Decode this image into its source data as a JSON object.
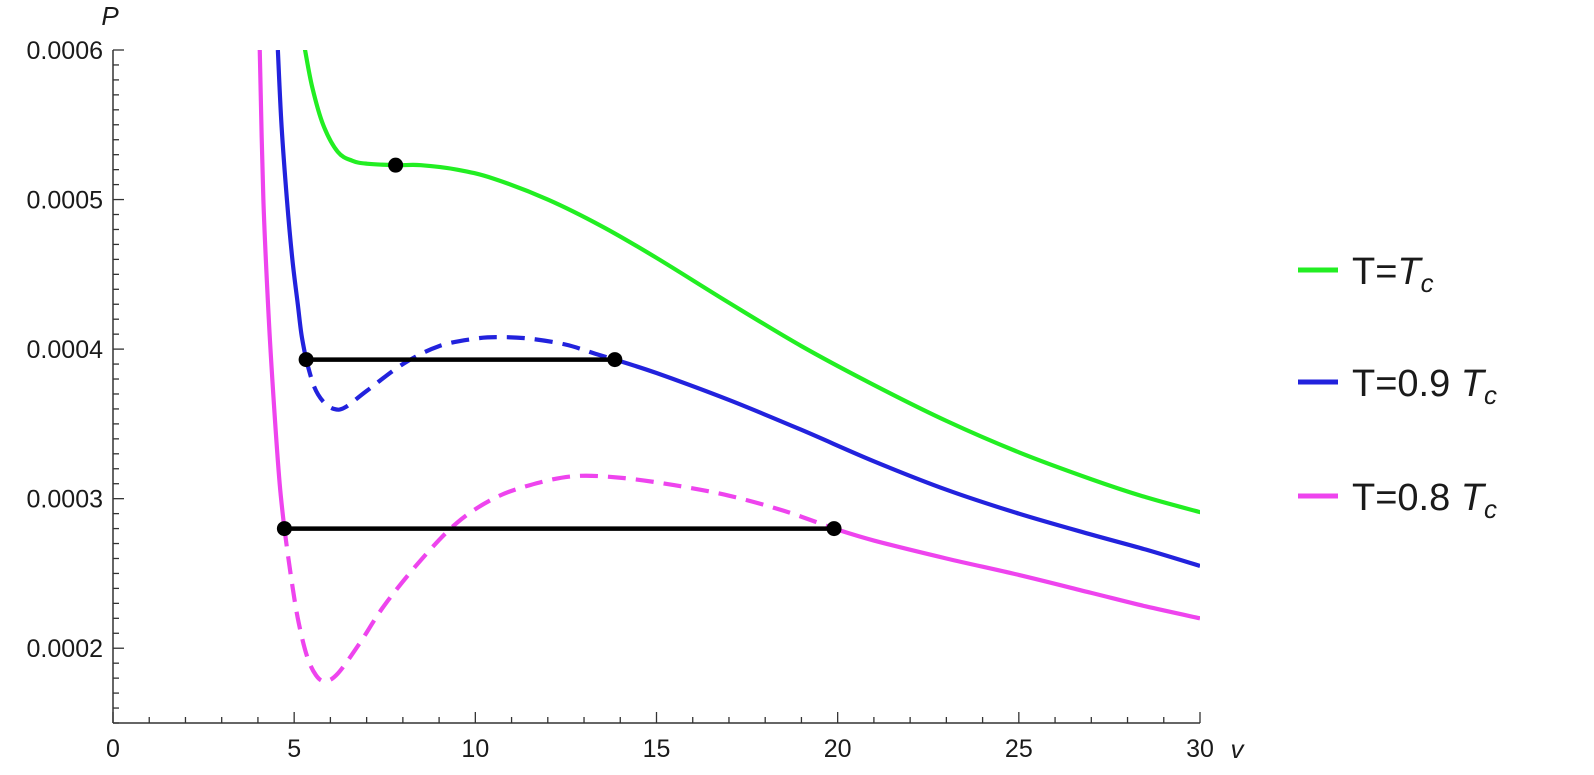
{
  "chart_data": {
    "type": "line",
    "xlabel": "v",
    "ylabel": "P",
    "xlim": [
      0,
      30
    ],
    "ylim": [
      0.00015,
      0.0006
    ],
    "x_ticks": [
      0,
      5,
      10,
      15,
      20,
      25,
      30
    ],
    "x_tick_labels": [
      "0",
      "5",
      "10",
      "15",
      "20",
      "25",
      "30"
    ],
    "y_ticks": [
      0.0002,
      0.0003,
      0.0004,
      0.0005,
      0.0006
    ],
    "y_tick_labels": [
      "0.0002",
      "0.0003",
      "0.0004",
      "0.0005",
      "0.0006"
    ],
    "grid": false,
    "legend_placement": "right",
    "series": [
      {
        "name_main": "T=",
        "name_sub": "T",
        "name_subsub": "c",
        "color": "#22ee22",
        "points": [
          [
            5.3,
            0.0006
          ],
          [
            5.5,
            0.000575
          ],
          [
            5.8,
            0.00055
          ],
          [
            6.2,
            0.000532
          ],
          [
            6.6,
            0.000526
          ],
          [
            7.0,
            0.000524
          ],
          [
            7.8,
            0.000523
          ],
          [
            8.5,
            0.000523
          ],
          [
            9.5,
            0.00052
          ],
          [
            10.5,
            0.000514
          ],
          [
            12,
            0.0005
          ],
          [
            13.5,
            0.000482
          ],
          [
            15,
            0.000461
          ],
          [
            17,
            0.000431
          ],
          [
            19,
            0.000402
          ],
          [
            21,
            0.000376
          ],
          [
            23,
            0.000352
          ],
          [
            25,
            0.000331
          ],
          [
            27,
            0.000313
          ],
          [
            28.5,
            0.000301
          ],
          [
            30,
            0.000291
          ]
        ],
        "critical_point": [
          7.8,
          0.000523
        ]
      },
      {
        "name_main": "T=0.9 ",
        "name_sub": "T",
        "name_subsub": "c",
        "color": "#2222dd",
        "points_left": [
          [
            4.55,
            0.0006
          ],
          [
            4.65,
            0.00055
          ],
          [
            4.8,
            0.0005
          ],
          [
            4.95,
            0.00046
          ],
          [
            5.1,
            0.00043
          ],
          [
            5.2,
            0.00041
          ],
          [
            5.33,
            0.000393
          ]
        ],
        "points_dashed": [
          [
            5.33,
            0.000393
          ],
          [
            5.55,
            0.000375
          ],
          [
            5.8,
            0.000365
          ],
          [
            6.1,
            0.00036
          ],
          [
            6.4,
            0.000361
          ],
          [
            7,
            0.000372
          ],
          [
            8,
            0.00039
          ],
          [
            9,
            0.000402
          ],
          [
            10,
            0.000407
          ],
          [
            10.7,
            0.000408
          ],
          [
            11.5,
            0.000407
          ],
          [
            12.5,
            0.000403
          ],
          [
            13.3,
            0.000397
          ],
          [
            13.85,
            0.000393
          ]
        ],
        "points_right": [
          [
            13.85,
            0.000393
          ],
          [
            15,
            0.000384
          ],
          [
            17,
            0.000366
          ],
          [
            19,
            0.000346
          ],
          [
            21,
            0.000325
          ],
          [
            23,
            0.000306
          ],
          [
            25,
            0.00029
          ],
          [
            27,
            0.000276
          ],
          [
            28.5,
            0.000266
          ],
          [
            30,
            0.000255
          ]
        ],
        "coexistence_line": {
          "v1": 5.33,
          "v2": 13.85,
          "P": 0.000393
        }
      },
      {
        "name_main": "T=0.8 ",
        "name_sub": "T",
        "name_subsub": "c",
        "color": "#ee44ee",
        "points_left": [
          [
            4.05,
            0.0006
          ],
          [
            4.15,
            0.0005
          ],
          [
            4.3,
            0.00042
          ],
          [
            4.45,
            0.00036
          ],
          [
            4.6,
            0.00031
          ],
          [
            4.73,
            0.00028
          ]
        ],
        "points_dashed": [
          [
            4.73,
            0.00028
          ],
          [
            4.9,
            0.00025
          ],
          [
            5.1,
            0.00022
          ],
          [
            5.35,
            0.000195
          ],
          [
            5.6,
            0.000182
          ],
          [
            5.85,
            0.000178
          ],
          [
            6.2,
            0.000183
          ],
          [
            6.8,
            0.000203
          ],
          [
            7.5,
            0.000229
          ],
          [
            8.5,
            0.000259
          ],
          [
            9.5,
            0.000284
          ],
          [
            10.5,
            0.0003
          ],
          [
            11.5,
            0.000309
          ],
          [
            12.7,
            0.000315
          ],
          [
            14,
            0.000314
          ],
          [
            15.5,
            0.000309
          ],
          [
            17,
            0.000302
          ],
          [
            18.5,
            0.000292
          ],
          [
            19.9,
            0.00028
          ]
        ],
        "points_right": [
          [
            19.9,
            0.00028
          ],
          [
            21,
            0.000272
          ],
          [
            23,
            0.00026
          ],
          [
            25,
            0.000249
          ],
          [
            27,
            0.000237
          ],
          [
            28.5,
            0.000228
          ],
          [
            30,
            0.00022
          ]
        ],
        "coexistence_line": {
          "v1": 4.73,
          "v2": 19.9,
          "P": 0.00028
        }
      }
    ]
  }
}
